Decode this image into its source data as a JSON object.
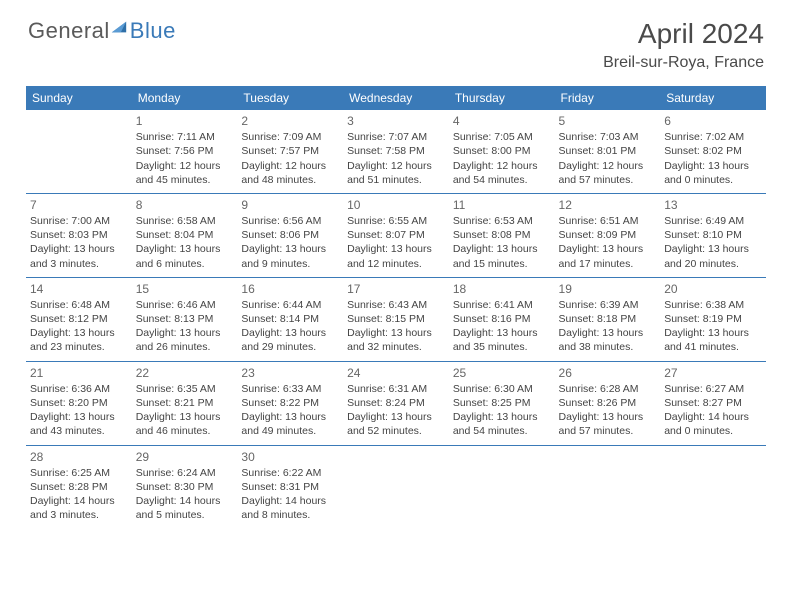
{
  "logo": {
    "general": "General",
    "blue": "Blue"
  },
  "header": {
    "title": "April 2024",
    "location": "Breil-sur-Roya, France"
  },
  "colors": {
    "header_bg": "#3a7ab8",
    "header_text": "#ffffff",
    "text": "#444444",
    "line": "#3a7ab8",
    "logo_gray": "#5a5a5a",
    "logo_blue": "#3a7ab8"
  },
  "weekdays": [
    "Sunday",
    "Monday",
    "Tuesday",
    "Wednesday",
    "Thursday",
    "Friday",
    "Saturday"
  ],
  "weeks": [
    [
      null,
      {
        "n": "1",
        "sr": "Sunrise: 7:11 AM",
        "ss": "Sunset: 7:56 PM",
        "d1": "Daylight: 12 hours",
        "d2": "and 45 minutes."
      },
      {
        "n": "2",
        "sr": "Sunrise: 7:09 AM",
        "ss": "Sunset: 7:57 PM",
        "d1": "Daylight: 12 hours",
        "d2": "and 48 minutes."
      },
      {
        "n": "3",
        "sr": "Sunrise: 7:07 AM",
        "ss": "Sunset: 7:58 PM",
        "d1": "Daylight: 12 hours",
        "d2": "and 51 minutes."
      },
      {
        "n": "4",
        "sr": "Sunrise: 7:05 AM",
        "ss": "Sunset: 8:00 PM",
        "d1": "Daylight: 12 hours",
        "d2": "and 54 minutes."
      },
      {
        "n": "5",
        "sr": "Sunrise: 7:03 AM",
        "ss": "Sunset: 8:01 PM",
        "d1": "Daylight: 12 hours",
        "d2": "and 57 minutes."
      },
      {
        "n": "6",
        "sr": "Sunrise: 7:02 AM",
        "ss": "Sunset: 8:02 PM",
        "d1": "Daylight: 13 hours",
        "d2": "and 0 minutes."
      }
    ],
    [
      {
        "n": "7",
        "sr": "Sunrise: 7:00 AM",
        "ss": "Sunset: 8:03 PM",
        "d1": "Daylight: 13 hours",
        "d2": "and 3 minutes."
      },
      {
        "n": "8",
        "sr": "Sunrise: 6:58 AM",
        "ss": "Sunset: 8:04 PM",
        "d1": "Daylight: 13 hours",
        "d2": "and 6 minutes."
      },
      {
        "n": "9",
        "sr": "Sunrise: 6:56 AM",
        "ss": "Sunset: 8:06 PM",
        "d1": "Daylight: 13 hours",
        "d2": "and 9 minutes."
      },
      {
        "n": "10",
        "sr": "Sunrise: 6:55 AM",
        "ss": "Sunset: 8:07 PM",
        "d1": "Daylight: 13 hours",
        "d2": "and 12 minutes."
      },
      {
        "n": "11",
        "sr": "Sunrise: 6:53 AM",
        "ss": "Sunset: 8:08 PM",
        "d1": "Daylight: 13 hours",
        "d2": "and 15 minutes."
      },
      {
        "n": "12",
        "sr": "Sunrise: 6:51 AM",
        "ss": "Sunset: 8:09 PM",
        "d1": "Daylight: 13 hours",
        "d2": "and 17 minutes."
      },
      {
        "n": "13",
        "sr": "Sunrise: 6:49 AM",
        "ss": "Sunset: 8:10 PM",
        "d1": "Daylight: 13 hours",
        "d2": "and 20 minutes."
      }
    ],
    [
      {
        "n": "14",
        "sr": "Sunrise: 6:48 AM",
        "ss": "Sunset: 8:12 PM",
        "d1": "Daylight: 13 hours",
        "d2": "and 23 minutes."
      },
      {
        "n": "15",
        "sr": "Sunrise: 6:46 AM",
        "ss": "Sunset: 8:13 PM",
        "d1": "Daylight: 13 hours",
        "d2": "and 26 minutes."
      },
      {
        "n": "16",
        "sr": "Sunrise: 6:44 AM",
        "ss": "Sunset: 8:14 PM",
        "d1": "Daylight: 13 hours",
        "d2": "and 29 minutes."
      },
      {
        "n": "17",
        "sr": "Sunrise: 6:43 AM",
        "ss": "Sunset: 8:15 PM",
        "d1": "Daylight: 13 hours",
        "d2": "and 32 minutes."
      },
      {
        "n": "18",
        "sr": "Sunrise: 6:41 AM",
        "ss": "Sunset: 8:16 PM",
        "d1": "Daylight: 13 hours",
        "d2": "and 35 minutes."
      },
      {
        "n": "19",
        "sr": "Sunrise: 6:39 AM",
        "ss": "Sunset: 8:18 PM",
        "d1": "Daylight: 13 hours",
        "d2": "and 38 minutes."
      },
      {
        "n": "20",
        "sr": "Sunrise: 6:38 AM",
        "ss": "Sunset: 8:19 PM",
        "d1": "Daylight: 13 hours",
        "d2": "and 41 minutes."
      }
    ],
    [
      {
        "n": "21",
        "sr": "Sunrise: 6:36 AM",
        "ss": "Sunset: 8:20 PM",
        "d1": "Daylight: 13 hours",
        "d2": "and 43 minutes."
      },
      {
        "n": "22",
        "sr": "Sunrise: 6:35 AM",
        "ss": "Sunset: 8:21 PM",
        "d1": "Daylight: 13 hours",
        "d2": "and 46 minutes."
      },
      {
        "n": "23",
        "sr": "Sunrise: 6:33 AM",
        "ss": "Sunset: 8:22 PM",
        "d1": "Daylight: 13 hours",
        "d2": "and 49 minutes."
      },
      {
        "n": "24",
        "sr": "Sunrise: 6:31 AM",
        "ss": "Sunset: 8:24 PM",
        "d1": "Daylight: 13 hours",
        "d2": "and 52 minutes."
      },
      {
        "n": "25",
        "sr": "Sunrise: 6:30 AM",
        "ss": "Sunset: 8:25 PM",
        "d1": "Daylight: 13 hours",
        "d2": "and 54 minutes."
      },
      {
        "n": "26",
        "sr": "Sunrise: 6:28 AM",
        "ss": "Sunset: 8:26 PM",
        "d1": "Daylight: 13 hours",
        "d2": "and 57 minutes."
      },
      {
        "n": "27",
        "sr": "Sunrise: 6:27 AM",
        "ss": "Sunset: 8:27 PM",
        "d1": "Daylight: 14 hours",
        "d2": "and 0 minutes."
      }
    ],
    [
      {
        "n": "28",
        "sr": "Sunrise: 6:25 AM",
        "ss": "Sunset: 8:28 PM",
        "d1": "Daylight: 14 hours",
        "d2": "and 3 minutes."
      },
      {
        "n": "29",
        "sr": "Sunrise: 6:24 AM",
        "ss": "Sunset: 8:30 PM",
        "d1": "Daylight: 14 hours",
        "d2": "and 5 minutes."
      },
      {
        "n": "30",
        "sr": "Sunrise: 6:22 AM",
        "ss": "Sunset: 8:31 PM",
        "d1": "Daylight: 14 hours",
        "d2": "and 8 minutes."
      },
      null,
      null,
      null,
      null
    ]
  ]
}
